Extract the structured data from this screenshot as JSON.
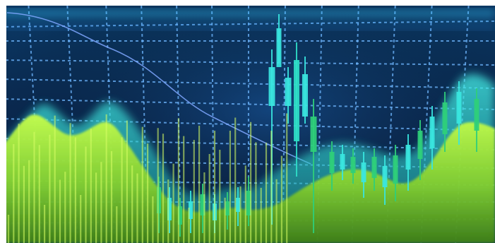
{
  "image": {
    "subject": "stock-market-candlestick-chart-photo",
    "colors": {
      "background_top": "#0a2a52",
      "background_deep": "#071a3a",
      "grid": "#6fb7ff",
      "candle_cyan": "#39e6e0",
      "candle_green": "#2fcf7a",
      "area_lime": "#b9f23a",
      "area_green": "#63c92a",
      "trend_line": "#7fa7ff"
    }
  }
}
